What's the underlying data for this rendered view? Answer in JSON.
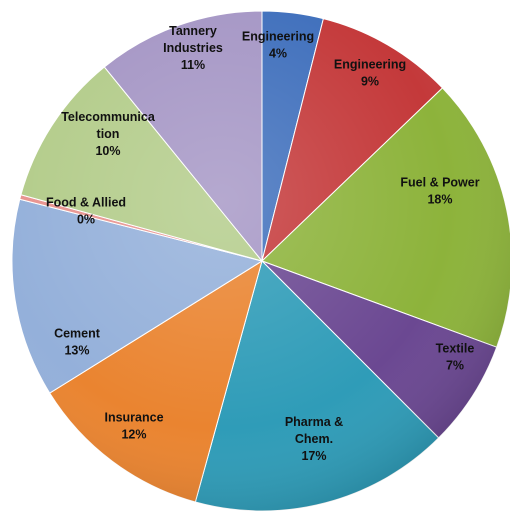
{
  "chart_data": {
    "type": "pie",
    "start_angle_deg": 0,
    "direction": "clockwise",
    "slices": [
      {
        "label_lines": [
          "Engineering",
          "4%"
        ],
        "value": 4,
        "color": "#3f6fbc"
      },
      {
        "label_lines": [
          "Engineering",
          "9%"
        ],
        "value": 9,
        "color": "#c4393a"
      },
      {
        "label_lines": [
          "Fuel & Power",
          "18%"
        ],
        "value": 18,
        "color": "#8db33b"
      },
      {
        "label_lines": [
          "Textile",
          "7%"
        ],
        "value": 7,
        "color": "#6b4892"
      },
      {
        "label_lines": [
          "Pharma &",
          "Chem.",
          "17%"
        ],
        "value": 17,
        "color": "#2f9cb8"
      },
      {
        "label_lines": [
          "Insurance",
          "12%"
        ],
        "value": 12,
        "color": "#ea8430"
      },
      {
        "label_lines": [
          "Cement",
          "13%"
        ],
        "value": 13,
        "color": "#94b0da"
      },
      {
        "label_lines": [
          "Food & Allied",
          "0%"
        ],
        "value": 0.3,
        "color": "#e8928e"
      },
      {
        "label_lines": [
          "Telecommunica",
          "tion",
          "10%"
        ],
        "value": 10,
        "color": "#b3cc8a"
      },
      {
        "label_lines": [
          "Tannery",
          "Industries",
          "11%"
        ],
        "value": 11,
        "color": "#a596c5"
      }
    ]
  }
}
